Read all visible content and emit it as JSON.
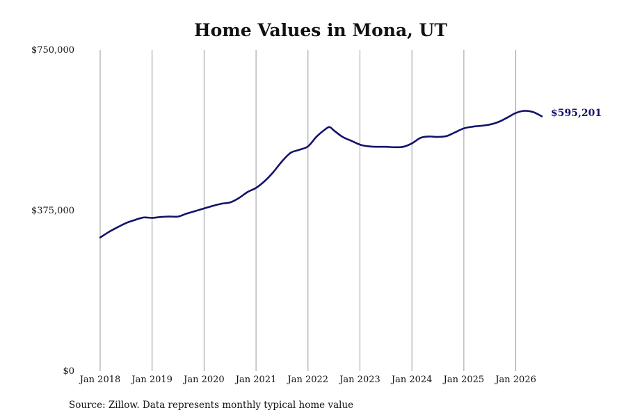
{
  "chart_data": {
    "type": "line",
    "title": "Home Values in Mona, UT",
    "xlabel": "",
    "ylabel": "",
    "ylim": [
      0,
      750000
    ],
    "y_ticks": [
      {
        "value": 0,
        "label": "$0"
      },
      {
        "value": 375000,
        "label": "$375,000"
      },
      {
        "value": 750000,
        "label": "$750,000"
      }
    ],
    "x_ticks": [
      {
        "year": 2018,
        "label": "Jan 2018"
      },
      {
        "year": 2019,
        "label": "Jan 2019"
      },
      {
        "year": 2020,
        "label": "Jan 2020"
      },
      {
        "year": 2021,
        "label": "Jan 2021"
      },
      {
        "year": 2022,
        "label": "Jan 2022"
      },
      {
        "year": 2023,
        "label": "Jan 2023"
      },
      {
        "year": 2024,
        "label": "Jan 2024"
      },
      {
        "year": 2025,
        "label": "Jan 2025"
      },
      {
        "year": 2026,
        "label": "Jan 2026"
      }
    ],
    "grid": "vertical",
    "line_color": "#13136b",
    "series": [
      {
        "x": [
          "2018-01",
          "2018-03",
          "2018-05",
          "2018-07",
          "2018-09",
          "2018-11",
          "2019-01",
          "2019-03",
          "2019-05",
          "2019-07",
          "2019-09",
          "2019-11",
          "2020-01",
          "2020-03",
          "2020-05",
          "2020-07",
          "2020-09",
          "2020-11",
          "2021-01",
          "2021-03",
          "2021-05",
          "2021-07",
          "2021-09",
          "2021-11",
          "2022-01",
          "2022-03",
          "2022-05",
          "2022-06",
          "2022-07",
          "2022-09",
          "2022-11",
          "2023-01",
          "2023-03",
          "2023-05",
          "2023-07",
          "2023-09",
          "2023-11",
          "2024-01",
          "2024-03",
          "2024-05",
          "2024-07",
          "2024-09",
          "2024-11",
          "2025-01",
          "2025-03",
          "2025-05",
          "2025-07",
          "2025-09",
          "2025-11",
          "2026-01",
          "2026-03",
          "2026-05",
          "2026-07"
        ],
        "values": [
          312000,
          325000,
          336000,
          346000,
          353000,
          359000,
          358000,
          360000,
          361000,
          361000,
          368000,
          374000,
          380000,
          386000,
          391000,
          394000,
          404000,
          418000,
          428000,
          444000,
          465000,
          490000,
          510000,
          517000,
          525000,
          548000,
          565000,
          570000,
          562000,
          547000,
          538000,
          529000,
          525000,
          524000,
          524000,
          523000,
          524000,
          532000,
          545000,
          548000,
          547000,
          549000,
          558000,
          567000,
          571000,
          573000,
          576000,
          582000,
          592000,
          603000,
          608000,
          605000,
          595201
        ]
      }
    ],
    "end_label": "$595,201",
    "source": "Source: Zillow. Data represents monthly typical home value"
  }
}
